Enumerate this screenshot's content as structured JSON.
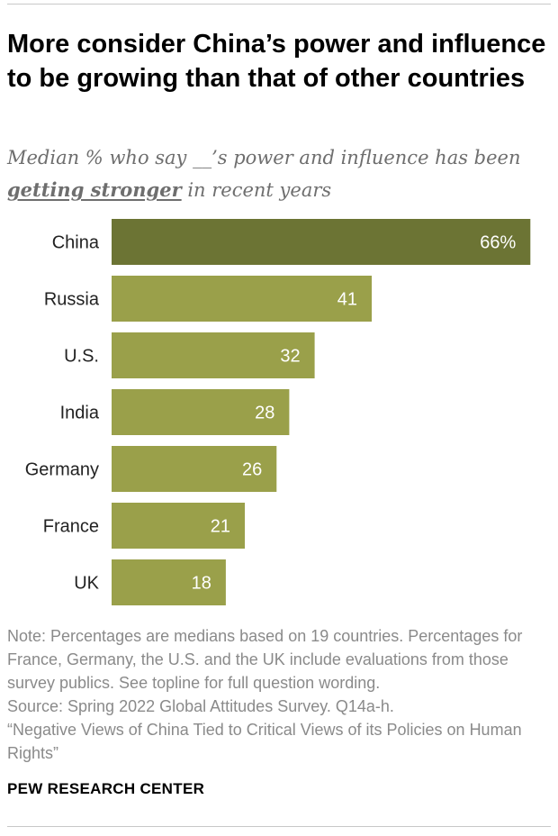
{
  "title": "More consider China’s power and influence to be growing than that of other countries",
  "subtitle": {
    "before": "Median % who say __’s power and influence has been ",
    "emphasis": "getting stronger",
    "after": " in recent years"
  },
  "chart_data": {
    "type": "bar",
    "orientation": "horizontal",
    "categories": [
      "China",
      "Russia",
      "U.S.",
      "India",
      "Germany",
      "France",
      "UK"
    ],
    "values": [
      66,
      41,
      32,
      28,
      26,
      21,
      18
    ],
    "value_labels": [
      "66%",
      "41",
      "32",
      "28",
      "26",
      "21",
      "18"
    ],
    "colors": [
      "#6c7434",
      "#9aa04a",
      "#9aa04a",
      "#9aa04a",
      "#9aa04a",
      "#9aa04a",
      "#9aa04a"
    ],
    "value_label_color": "#ffffff",
    "xlim": [
      0,
      100
    ],
    "grid": false
  },
  "notes": {
    "note": "Note: Percentages are medians based on 19 countries. Percentages for France, Germany, the U.S. and the UK include evaluations from those survey publics. See topline for full question wording.",
    "source": "Source: Spring 2022 Global Attitudes Survey. Q14a-h.",
    "report": "“Negative Views of China Tied to Critical Views of its Policies on Human Rights”"
  },
  "brand": "PEW RESEARCH CENTER"
}
